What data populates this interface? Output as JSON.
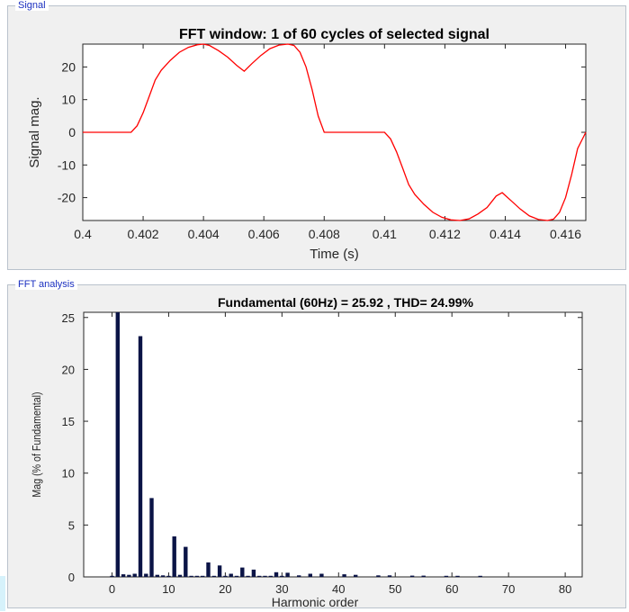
{
  "signal_panel": {
    "title": "Signal"
  },
  "fft_panel": {
    "title": "FFT analysis"
  },
  "chart_data": [
    {
      "type": "line",
      "title": "FFT window: 1 of 60 cycles of selected signal",
      "xlabel": "Time (s)",
      "ylabel": "Signal mag.",
      "xlim": [
        0.4,
        0.41667
      ],
      "ylim": [
        -27,
        27
      ],
      "xticks": [
        "0.4",
        "0.402",
        "0.404",
        "0.406",
        "0.408",
        "0.41",
        "0.412",
        "0.414",
        "0.416"
      ],
      "yticks": [
        "20",
        "10",
        "0",
        "-10",
        "-20"
      ],
      "line_color": "#ff0000",
      "series": [
        {
          "x": [
            0.4,
            0.4016,
            0.4018,
            0.402,
            0.4022,
            0.4024,
            0.4026,
            0.4029,
            0.4032,
            0.4035,
            0.4038,
            0.404,
            0.4042,
            0.4045,
            0.4048,
            0.4051,
            0.40535,
            0.4056,
            0.4059,
            0.4062,
            0.4065,
            0.4068,
            0.407,
            0.4072,
            0.4074,
            0.4076,
            0.4078,
            0.408,
            0.4082,
            0.41,
            0.4102,
            0.4104,
            0.4106,
            0.4108,
            0.411,
            0.4113,
            0.4116,
            0.4119,
            0.4122,
            0.4125,
            0.4128,
            0.4131,
            0.4134,
            0.4137,
            0.4139,
            0.4142,
            0.4145,
            0.4148,
            0.4151,
            0.4154,
            0.4156,
            0.4158,
            0.416,
            0.4162,
            0.4164,
            0.41667
          ],
          "y": [
            0,
            0,
            2,
            6,
            11,
            16,
            19,
            22,
            24.5,
            26,
            26.8,
            27,
            26.6,
            25,
            23,
            20.5,
            18.7,
            21,
            23.5,
            25.6,
            26.7,
            27,
            26.6,
            24.5,
            20,
            13,
            5,
            0,
            0,
            0,
            -2,
            -6,
            -11,
            -16,
            -19,
            -22,
            -24.5,
            -26,
            -26.8,
            -27,
            -26.5,
            -25,
            -23,
            -19.5,
            -18.5,
            -21,
            -23.5,
            -25.6,
            -26.7,
            -27,
            -26.6,
            -24.5,
            -20,
            -13,
            -5,
            0
          ]
        }
      ]
    },
    {
      "type": "bar",
      "title": "Fundamental (60Hz) = 25.92 , THD= 24.99%",
      "xlabel": "Harmonic order",
      "ylabel": "Mag (% of Fundamental)",
      "xlim": [
        -5,
        83
      ],
      "ylim": [
        0,
        25.5
      ],
      "xticks": [
        "0",
        "10",
        "20",
        "30",
        "40",
        "50",
        "60",
        "70",
        "80"
      ],
      "yticks": [
        "0",
        "5",
        "10",
        "15",
        "20",
        "25"
      ],
      "bar_color": "#0b1446",
      "x": [
        0,
        1,
        2,
        3,
        4,
        5,
        6,
        7,
        8,
        9,
        10,
        11,
        12,
        13,
        14,
        15,
        16,
        17,
        18,
        19,
        20,
        21,
        22,
        23,
        24,
        25,
        26,
        27,
        28,
        29,
        30,
        31,
        33,
        35,
        37,
        41,
        43,
        47,
        49,
        53,
        55,
        59,
        61,
        65
      ],
      "values": [
        0.1,
        25.5,
        0.25,
        0.2,
        0.3,
        23.2,
        0.3,
        7.6,
        0.2,
        0.15,
        0.1,
        3.9,
        0.2,
        2.9,
        0.1,
        0.1,
        0.1,
        1.4,
        0.1,
        1.1,
        0.1,
        0.3,
        0.1,
        0.9,
        0.1,
        0.7,
        0.1,
        0.1,
        0.1,
        0.45,
        0.1,
        0.4,
        0.15,
        0.3,
        0.3,
        0.25,
        0.2,
        0.15,
        0.15,
        0.12,
        0.12,
        0.1,
        0.1,
        0.1
      ]
    }
  ]
}
